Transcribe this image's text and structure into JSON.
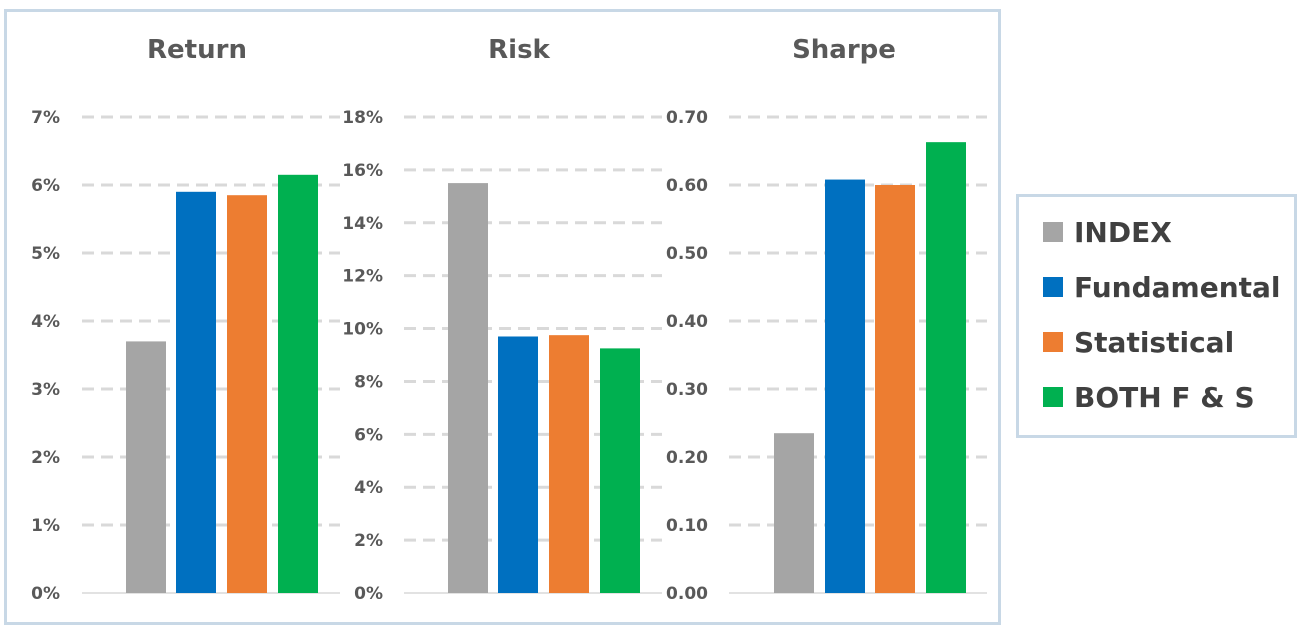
{
  "chart_data": [
    {
      "type": "bar",
      "title": "Return",
      "categories": [
        "INDEX",
        "Fundamental",
        "Statistical",
        "BOTH F & S"
      ],
      "values": [
        3.7,
        5.9,
        5.85,
        6.15
      ],
      "ylim": [
        0,
        7
      ],
      "yticks": [
        "0%",
        "1%",
        "2%",
        "3%",
        "4%",
        "5%",
        "6%",
        "7%"
      ],
      "grid": true
    },
    {
      "type": "bar",
      "title": "Risk",
      "categories": [
        "INDEX",
        "Fundamental",
        "Statistical",
        "BOTH F & S"
      ],
      "values": [
        15.5,
        9.7,
        9.75,
        9.25
      ],
      "ylim": [
        0,
        18
      ],
      "yticks": [
        "0%",
        "2%",
        "4%",
        "6%",
        "8%",
        "10%",
        "12%",
        "14%",
        "16%",
        "18%"
      ],
      "grid": true
    },
    {
      "type": "bar",
      "title": "Sharpe",
      "categories": [
        "INDEX",
        "Fundamental",
        "Statistical",
        "BOTH F & S"
      ],
      "values": [
        0.235,
        0.608,
        0.6,
        0.663
      ],
      "ylim": [
        0,
        0.7
      ],
      "yticks": [
        "0.00",
        "0.10",
        "0.20",
        "0.30",
        "0.40",
        "0.50",
        "0.60",
        "0.70"
      ],
      "grid": true
    }
  ],
  "legend": {
    "position": "right",
    "items": [
      {
        "label": "INDEX",
        "color": "#a5a5a5"
      },
      {
        "label": "Fundamental",
        "color": "#0070c0"
      },
      {
        "label": "Statistical",
        "color": "#ed7d31"
      },
      {
        "label": "BOTH F & S",
        "color": "#00b050"
      }
    ]
  }
}
